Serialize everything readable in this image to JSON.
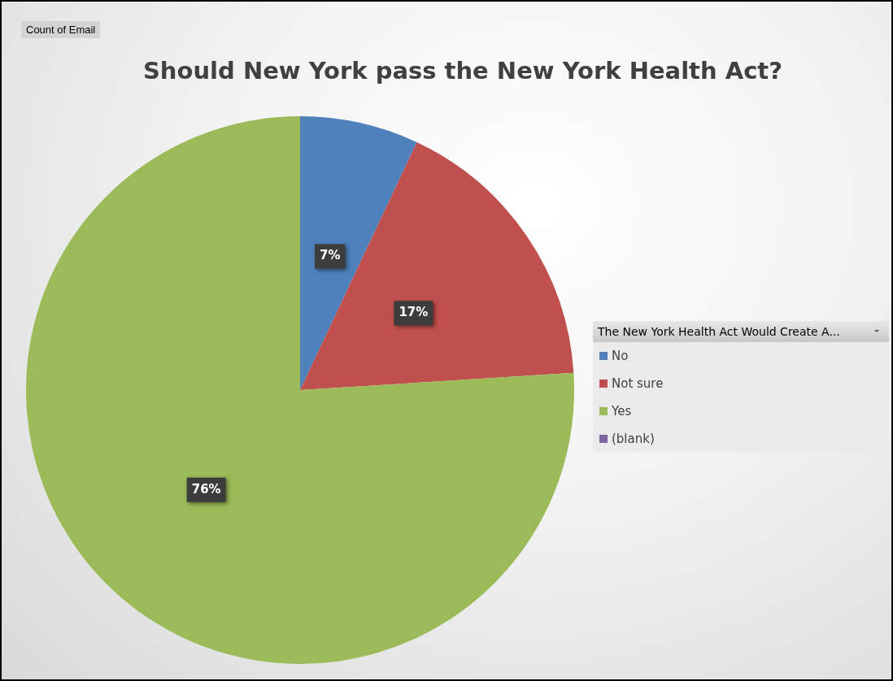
{
  "chart_data": {
    "type": "pie",
    "title": "Should New York pass the New York Health Act?",
    "annotations": [
      "Count of Email"
    ],
    "legend_title": "The New York Health Act Would Create A...",
    "legend": "right",
    "categories": [
      "No",
      "Not sure",
      "Yes",
      "(blank)"
    ],
    "values": [
      7,
      17,
      76,
      0
    ],
    "value_labels": [
      "7%",
      "17%",
      "76%",
      null
    ],
    "colors": [
      "#4f81bd",
      "#c0504d",
      "#9bbb59",
      "#8064a2"
    ]
  }
}
